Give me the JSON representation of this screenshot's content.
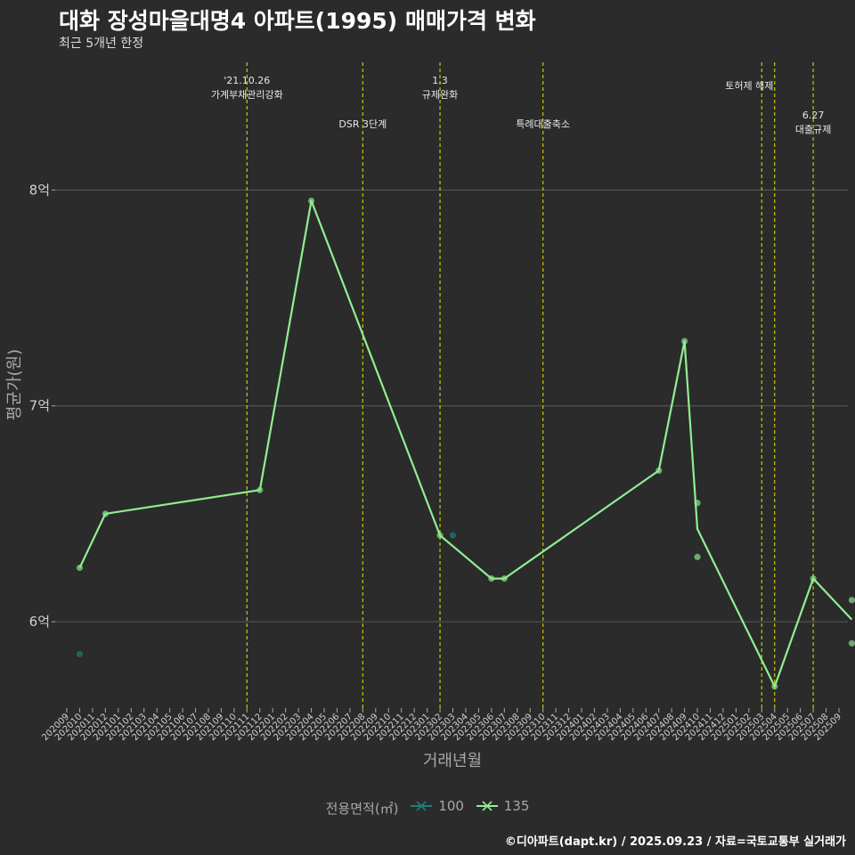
{
  "title": "대화 장성마을대명4 아파트(1995) 매매가격 변화",
  "subtitle": "최근 5개년 한정",
  "caption": "©디아파트(dapt.kr) / 2025.09.23 / 자료=국토교통부 실거래가",
  "colors": {
    "background": "#2b2b2b",
    "grid": "#5a5a5a",
    "policy_line": "#c8c800",
    "series_100": "#1f7f7f",
    "series_135": "#90ee90"
  },
  "chart_data": {
    "type": "line",
    "title": "대화 장성마을대명4 아파트(1995) 매매가격 변화",
    "xlabel": "거래년월",
    "ylabel": "평균가(원)",
    "ylim": [
      5.6,
      8.6
    ],
    "y_unit": "억",
    "y_ticks": [
      {
        "value": 6,
        "label": "6억"
      },
      {
        "value": 7,
        "label": "7억"
      },
      {
        "value": 8,
        "label": "8억"
      }
    ],
    "categories": [
      "202009",
      "202010",
      "202011",
      "202012",
      "202101",
      "202102",
      "202103",
      "202104",
      "202105",
      "202106",
      "202107",
      "202108",
      "202109",
      "202110",
      "202111",
      "202112",
      "202201",
      "202202",
      "202203",
      "202204",
      "202205",
      "202206",
      "202207",
      "202208",
      "202209",
      "202210",
      "202211",
      "202212",
      "202301",
      "202302",
      "202303",
      "202304",
      "202305",
      "202306",
      "202307",
      "202308",
      "202309",
      "202310",
      "202311",
      "202312",
      "202401",
      "202402",
      "202403",
      "202404",
      "202405",
      "202406",
      "202407",
      "202408",
      "202409",
      "202410",
      "202411",
      "202412",
      "202501",
      "202502",
      "202503",
      "202504",
      "202505",
      "202506",
      "202507",
      "202508",
      "202509"
    ],
    "legend_title": "전용면적(㎡)",
    "series": [
      {
        "name": "100",
        "line": [],
        "points": [
          {
            "x": "202010",
            "y": 5.85
          },
          {
            "x": "202303",
            "y": 6.4
          }
        ]
      },
      {
        "name": "135",
        "line": [
          {
            "x": "202010",
            "y": 6.25
          },
          {
            "x": "202012",
            "y": 6.5
          },
          {
            "x": "202112",
            "y": 6.61
          },
          {
            "x": "202204",
            "y": 7.95
          },
          {
            "x": "202302",
            "y": 6.4
          },
          {
            "x": "202306",
            "y": 6.2
          },
          {
            "x": "202307",
            "y": 6.2
          },
          {
            "x": "202407",
            "y": 6.7
          },
          {
            "x": "202409",
            "y": 7.3
          },
          {
            "x": "202410",
            "y": 6.43
          },
          {
            "x": "202504",
            "y": 5.7
          },
          {
            "x": "202507",
            "y": 6.2
          },
          {
            "x": "202510",
            "y": 6.01
          }
        ],
        "points": [
          {
            "x": "202010",
            "y": 6.25
          },
          {
            "x": "202012",
            "y": 6.5
          },
          {
            "x": "202112",
            "y": 6.61
          },
          {
            "x": "202204",
            "y": 7.95
          },
          {
            "x": "202302",
            "y": 6.4
          },
          {
            "x": "202306",
            "y": 6.2
          },
          {
            "x": "202307",
            "y": 6.2
          },
          {
            "x": "202407",
            "y": 6.7
          },
          {
            "x": "202409",
            "y": 7.3
          },
          {
            "x": "202410",
            "y": 6.55
          },
          {
            "x": "202410",
            "y": 6.3
          },
          {
            "x": "202504",
            "y": 5.7
          },
          {
            "x": "202507",
            "y": 6.2
          },
          {
            "x": "202510",
            "y": 6.1
          },
          {
            "x": "202510",
            "y": 5.9
          }
        ]
      }
    ],
    "annotations": [
      {
        "x": "202111",
        "lines": [
          "'21.10.26",
          "가계부채관리강화"
        ],
        "row": 0
      },
      {
        "x": "202208",
        "lines": [
          "DSR 3단계"
        ],
        "row": 2
      },
      {
        "x": "202302",
        "lines": [
          "1.3",
          "규제완화"
        ],
        "row": 0
      },
      {
        "x": "202310",
        "lines": [
          "특례대출축소"
        ],
        "row": 2
      },
      {
        "x": "202503",
        "lines": [
          "토허제 해제"
        ],
        "row": 1
      },
      {
        "x": "202504",
        "lines": [],
        "row": 1
      },
      {
        "x": "202507",
        "lines": [
          "6.27",
          "대출규제"
        ],
        "row": 3
      }
    ]
  }
}
